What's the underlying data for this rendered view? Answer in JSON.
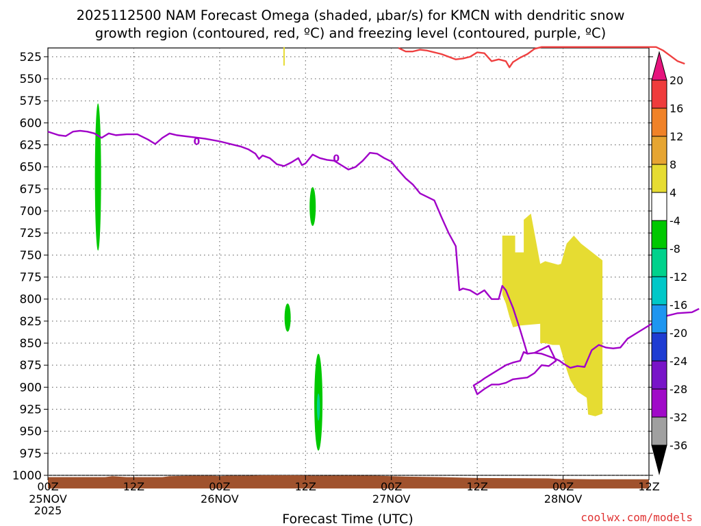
{
  "chart_data": {
    "type": "heatmap",
    "title_line1": "2025112500 NAM Forecast Omega (shaded, μbar/s) for KMCN with dendritic snow",
    "title_line2": "growth region (contoured, red, ºC) and freezing level (contoured, purple, ºC)",
    "xlabel": "Forecast Time (UTC)",
    "ylabel": "",
    "credit": "coolwx.com/models",
    "x_hours_range": [
      0,
      84
    ],
    "ylim": [
      1000,
      515
    ],
    "y_ticks": [
      525,
      550,
      575,
      600,
      625,
      650,
      675,
      700,
      725,
      750,
      775,
      800,
      825,
      850,
      875,
      900,
      925,
      950,
      975,
      1000
    ],
    "x_ticks": [
      {
        "hour": 0,
        "label": "00Z",
        "date": "25NOV",
        "year": "2025"
      },
      {
        "hour": 12,
        "label": "12Z",
        "date": "",
        "year": ""
      },
      {
        "hour": 24,
        "label": "00Z",
        "date": "26NOV",
        "year": ""
      },
      {
        "hour": 36,
        "label": "12Z",
        "date": "",
        "year": ""
      },
      {
        "hour": 48,
        "label": "00Z",
        "date": "27NOV",
        "year": ""
      },
      {
        "hour": 60,
        "label": "12Z",
        "date": "",
        "year": ""
      },
      {
        "hour": 72,
        "label": "00Z",
        "date": "28NOV",
        "year": ""
      },
      {
        "hour": 84,
        "label": "12Z",
        "date": "",
        "year": ""
      }
    ],
    "colorbar": {
      "levels": [
        "20",
        "16",
        "12",
        "8",
        "4",
        "-4",
        "-8",
        "-12",
        "-16",
        "-20",
        "-24",
        "-28",
        "-32",
        "-36"
      ],
      "colors": [
        "#ef3c3c",
        "#f08228",
        "#e6a532",
        "#e6dc32",
        "#ffffff",
        "#00c800",
        "#00d28c",
        "#00c8c8",
        "#1e96f0",
        "#1e3cd2",
        "#7814c8",
        "#a00ac8",
        "#a0a0a0"
      ],
      "top_arrow_color": "#e6147d",
      "bottom_arrow_color": "#000000"
    },
    "colors": {
      "freezing_level": "#a000c8",
      "dgz": "#ef4040",
      "terrain": "#a0522d",
      "positive_omega": "#e6dc32",
      "negative_omega": "#00c800",
      "stronger_negative": "#00d28c",
      "grid": "#555555"
    },
    "contour_labels": [
      "0",
      "0"
    ],
    "freezing_level": [
      [
        0,
        610
      ],
      [
        1.5,
        614
      ],
      [
        2.5,
        615
      ],
      [
        3.5,
        610
      ],
      [
        4.5,
        609
      ],
      [
        5.5,
        610
      ],
      [
        6.5,
        612
      ],
      [
        7.5,
        617
      ],
      [
        8.5,
        612
      ],
      [
        9.5,
        614
      ],
      [
        11,
        613
      ],
      [
        12.5,
        613
      ],
      [
        14,
        619
      ],
      [
        15,
        624
      ],
      [
        16,
        617
      ],
      [
        17,
        612
      ],
      [
        18,
        614
      ],
      [
        20,
        616
      ],
      [
        21,
        617
      ],
      [
        22,
        618
      ],
      [
        24,
        621
      ],
      [
        26,
        625
      ],
      [
        27,
        627
      ],
      [
        28,
        630
      ],
      [
        29,
        635
      ],
      [
        29.5,
        641
      ],
      [
        30,
        637
      ],
      [
        31,
        640
      ],
      [
        32,
        647
      ],
      [
        33,
        649
      ],
      [
        34,
        645
      ],
      [
        35,
        640
      ],
      [
        35.5,
        648
      ],
      [
        36,
        646
      ],
      [
        37,
        636
      ],
      [
        38,
        640
      ],
      [
        39,
        642
      ],
      [
        40,
        643
      ],
      [
        41,
        648
      ],
      [
        42,
        653
      ],
      [
        43,
        650
      ],
      [
        44,
        643
      ],
      [
        45,
        634
      ],
      [
        46,
        635
      ],
      [
        47,
        640
      ],
      [
        48,
        644
      ],
      [
        49,
        654
      ],
      [
        50,
        663
      ],
      [
        51,
        670
      ],
      [
        52,
        680
      ],
      [
        53,
        684
      ],
      [
        54,
        688
      ],
      [
        55,
        707
      ],
      [
        56,
        725
      ],
      [
        57,
        740
      ],
      [
        57.5,
        790
      ],
      [
        58,
        788
      ],
      [
        59,
        790
      ],
      [
        60,
        795
      ],
      [
        61,
        790
      ],
      [
        62,
        800
      ],
      [
        63,
        800
      ],
      [
        63.5,
        785
      ],
      [
        64,
        790
      ],
      [
        65,
        810
      ],
      [
        66,
        835
      ],
      [
        67,
        862
      ],
      [
        68,
        861
      ],
      [
        69,
        857
      ],
      [
        70,
        853
      ],
      [
        71,
        870
      ],
      [
        70,
        876
      ],
      [
        69,
        875
      ],
      [
        68,
        884
      ],
      [
        67,
        889
      ],
      [
        66,
        890
      ],
      [
        65,
        891
      ],
      [
        64,
        895
      ],
      [
        63,
        897
      ],
      [
        62,
        897
      ],
      [
        61,
        902
      ],
      [
        60,
        908
      ],
      [
        59.5,
        898
      ],
      [
        60.5,
        893
      ],
      [
        61,
        890
      ],
      [
        62,
        885
      ],
      [
        63,
        880
      ],
      [
        64,
        875
      ],
      [
        65,
        872
      ],
      [
        66,
        870
      ],
      [
        66.5,
        860
      ],
      [
        67,
        862
      ],
      [
        68,
        861
      ],
      [
        69,
        862
      ],
      [
        70,
        865
      ],
      [
        71,
        868
      ],
      [
        71.5,
        870
      ],
      [
        72,
        873
      ],
      [
        73,
        878
      ],
      [
        74,
        876
      ],
      [
        75,
        877
      ],
      [
        76,
        858
      ],
      [
        77,
        852
      ],
      [
        78,
        855
      ],
      [
        79,
        856
      ],
      [
        80,
        855
      ],
      [
        81,
        845
      ],
      [
        82,
        840
      ],
      [
        84,
        830
      ],
      [
        86,
        820
      ],
      [
        88,
        816
      ],
      [
        90,
        815
      ],
      [
        91,
        811
      ]
    ],
    "dgz_contour": [
      [
        49,
        515
      ],
      [
        50,
        519
      ],
      [
        51,
        519
      ],
      [
        52,
        517
      ],
      [
        53,
        518
      ],
      [
        54,
        520
      ],
      [
        55,
        522
      ],
      [
        56,
        525
      ],
      [
        57,
        528
      ],
      [
        58,
        527
      ],
      [
        59,
        525
      ],
      [
        60,
        520
      ],
      [
        61,
        521
      ],
      [
        62,
        530
      ],
      [
        63,
        528
      ],
      [
        64,
        530
      ],
      [
        64.5,
        537
      ],
      [
        65,
        531
      ],
      [
        66,
        526
      ],
      [
        67,
        522
      ],
      [
        68,
        516
      ],
      [
        69,
        514
      ],
      [
        85,
        514
      ],
      [
        86,
        518
      ],
      [
        87,
        524
      ],
      [
        88,
        530
      ],
      [
        89,
        533
      ]
    ],
    "freezing_level_dgz_note": "",
    "omega_green_features": [
      {
        "hour": 7,
        "p_top": 578,
        "p_bottom": 745,
        "value": -6
      },
      {
        "hour": 37,
        "p_top": 673,
        "p_bottom": 717,
        "value": -6
      },
      {
        "hour": 33.5,
        "p_top": 805,
        "p_bottom": 837,
        "value": -6
      },
      {
        "hour": 37.8,
        "p_top": 862,
        "p_bottom": 972,
        "value": -8
      }
    ],
    "omega_yellow_features": [
      {
        "hour_start": 63.5,
        "hour_end": 77.5,
        "p_top": 703,
        "p_bottom": 932,
        "value": 6
      }
    ],
    "terrain_pressure_top": 1002
  }
}
